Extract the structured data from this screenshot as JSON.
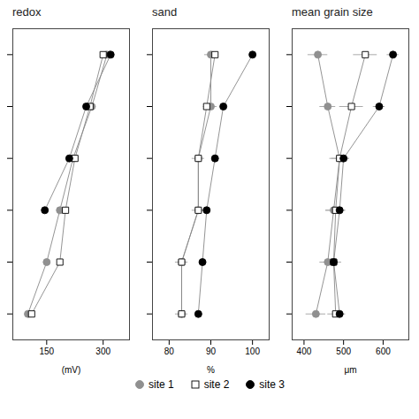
{
  "chart_data": [
    {
      "type": "line",
      "title": "redox",
      "x_label": "(mV)",
      "xlim": [
        60,
        370
      ],
      "xticks": [
        150,
        300
      ],
      "ylim": [
        5.5,
        -0.5
      ],
      "yticks": [
        0,
        1,
        2,
        3,
        4,
        5
      ],
      "tick_labels": "x",
      "legend": "bottom",
      "series": [
        {
          "name": "site 1",
          "color": "#909090",
          "marker": "circle",
          "x": [
            310,
            270,
            220,
            185,
            150,
            100
          ],
          "y": [
            0,
            1,
            2,
            3,
            4,
            5
          ]
        },
        {
          "name": "site 2",
          "color": "#ffffff",
          "marker": "square",
          "x": [
            300,
            265,
            225,
            200,
            185,
            110
          ],
          "y": [
            0,
            1,
            2,
            3,
            4,
            5
          ]
        },
        {
          "name": "site 3",
          "color": "#000000",
          "marker": "circle",
          "x": [
            320,
            255,
            210,
            145
          ],
          "y": [
            0,
            1,
            2,
            3
          ]
        }
      ]
    },
    {
      "type": "line",
      "title": "sand",
      "x_label": "%",
      "xlim": [
        76,
        104
      ],
      "xticks": [
        80,
        90,
        100
      ],
      "ylim": [
        5.5,
        -0.5
      ],
      "yticks": [
        0,
        1,
        2,
        3,
        4,
        5
      ],
      "tick_labels": "x",
      "legend": "bottom",
      "series": [
        {
          "name": "site 1",
          "color": "#909090",
          "marker": "circle",
          "x": [
            90,
            90,
            87,
            87,
            83,
            83
          ],
          "y": [
            0,
            1,
            2,
            3,
            4,
            5
          ],
          "xerr": [
            1.5,
            1.5,
            1.5,
            1.5,
            1.5,
            1.5
          ]
        },
        {
          "name": "site 2",
          "color": "#ffffff",
          "marker": "square",
          "x": [
            91,
            89,
            87,
            87,
            83,
            83
          ],
          "y": [
            0,
            1,
            2,
            3,
            4,
            5
          ],
          "xerr": [
            0.8,
            0.8,
            0.8,
            0.8,
            0.8,
            0.8
          ]
        },
        {
          "name": "site 3",
          "color": "#000000",
          "marker": "circle",
          "x": [
            100,
            93,
            91,
            89,
            88,
            87
          ],
          "y": [
            0,
            1,
            2,
            3,
            4,
            5
          ],
          "xerr": [
            0.3,
            0.3,
            0.3,
            0.3,
            0.3,
            0.3
          ]
        }
      ]
    },
    {
      "type": "line",
      "title": "mean grain size",
      "x_label": "μm",
      "xlim": [
        370,
        665
      ],
      "xticks": [
        400,
        500,
        600
      ],
      "ylim": [
        5.5,
        -0.5
      ],
      "yticks": [
        0,
        1,
        2,
        3,
        4,
        5
      ],
      "tick_labels": "x",
      "legend": "bottom",
      "series": [
        {
          "name": "site 1",
          "color": "#909090",
          "marker": "circle",
          "x": [
            435,
            460,
            490,
            475,
            460,
            430
          ],
          "y": [
            0,
            1,
            2,
            3,
            4,
            5
          ],
          "xerr": [
            25,
            20,
            20,
            20,
            20,
            25
          ]
        },
        {
          "name": "site 2",
          "color": "#ffffff",
          "marker": "square",
          "x": [
            555,
            520,
            490,
            480,
            475,
            480
          ],
          "y": [
            0,
            1,
            2,
            3,
            4,
            5
          ],
          "xerr": [
            30,
            30,
            25,
            25,
            20,
            20
          ]
        },
        {
          "name": "site 3",
          "color": "#000000",
          "marker": "circle",
          "x": [
            625,
            590,
            500,
            490,
            475,
            490
          ],
          "y": [
            0,
            1,
            2,
            3,
            4,
            5
          ],
          "xerr": [
            15,
            15,
            15,
            15,
            15,
            15
          ]
        }
      ]
    }
  ]
}
